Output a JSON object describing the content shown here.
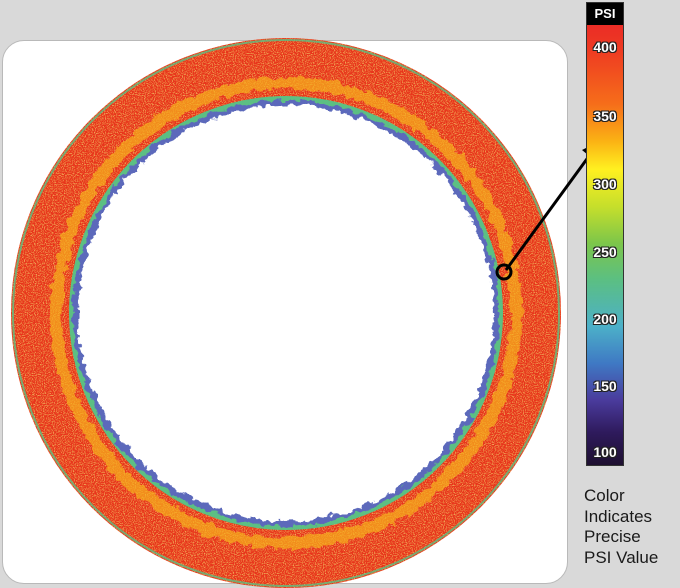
{
  "legend": {
    "title": "PSI",
    "ticks": [
      "400",
      "350",
      "300",
      "250",
      "200",
      "150",
      "100"
    ],
    "caption_lines": [
      "Color",
      "Indicates",
      "Precise",
      "PSI Value"
    ]
  },
  "colors": {
    "background": "#d9d9d9",
    "panel": "#ffffff",
    "ring_high": "#e8341f",
    "ring_mid": "#f7b21a",
    "ring_low": "#5bbf83",
    "ring_edge": "#3f4fb0",
    "arrow": "#000000"
  }
}
